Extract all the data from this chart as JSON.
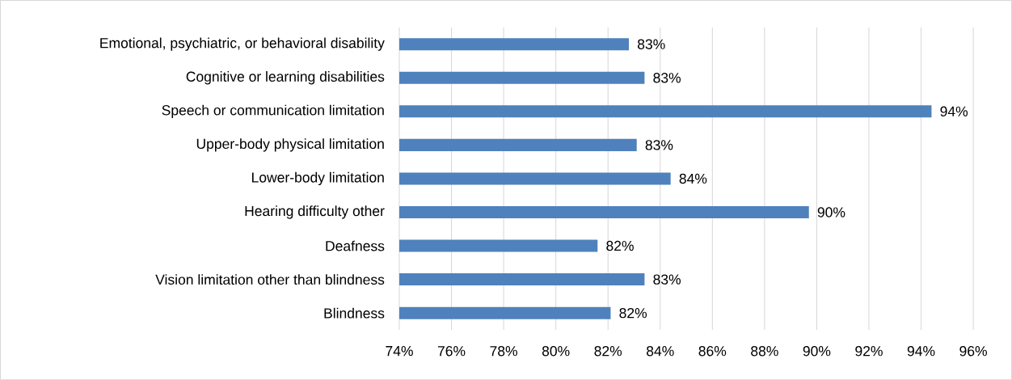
{
  "chart_data": {
    "type": "bar",
    "orientation": "horizontal",
    "color": "#4f81bd",
    "categories": [
      "Emotional, psychiatric, or behavioral disability",
      "Cognitive or learning disabilities",
      "Speech or communication limitation",
      "Upper-body physical limitation",
      "Lower-body limitation",
      "Hearing difficulty other",
      "Deafness",
      "Vision limitation other than blindness",
      "Blindness"
    ],
    "values": [
      82.8,
      83.4,
      94.4,
      83.1,
      84.4,
      89.7,
      81.6,
      83.4,
      82.1
    ],
    "value_labels": [
      "83%",
      "83%",
      "94%",
      "83%",
      "84%",
      "90%",
      "82%",
      "83%",
      "82%"
    ],
    "xlim": [
      74,
      96
    ],
    "xticks": [
      {
        "value": 74,
        "label": "74%"
      },
      {
        "value": 76,
        "label": "76%"
      },
      {
        "value": 78,
        "label": "78%"
      },
      {
        "value": 80,
        "label": "80%"
      },
      {
        "value": 82,
        "label": "82%"
      },
      {
        "value": 84,
        "label": "84%"
      },
      {
        "value": 86,
        "label": "86%"
      },
      {
        "value": 88,
        "label": "88%"
      },
      {
        "value": 90,
        "label": "90%"
      },
      {
        "value": 92,
        "label": "92%"
      },
      {
        "value": 94,
        "label": "94%"
      },
      {
        "value": 96,
        "label": "96%"
      }
    ],
    "grid": "x"
  }
}
